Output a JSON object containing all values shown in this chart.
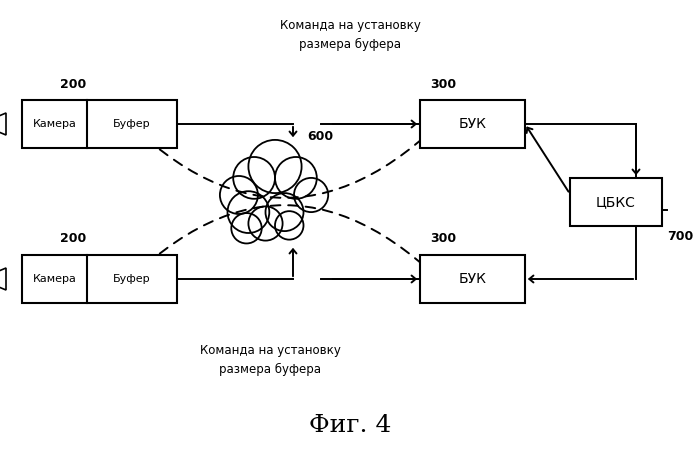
{
  "title": "Фиг. 4",
  "top_label": "Команда на установку\nразмера буфера",
  "bottom_label": "Команда на установку\nразмера буфера",
  "camera_label": "Камера",
  "buffer_label": "Буфер",
  "buk_label": "БУК",
  "cbks_label": "ЦБКС",
  "cloud_label": "600",
  "cam_top_label": "200",
  "cam_bot_label": "200",
  "buk_top_label": "300",
  "buk_bot_label": "300",
  "cbks_num_label": "700",
  "bg_color": "#ffffff",
  "box_color": "#ffffff",
  "box_edge": "#000000",
  "text_color": "#000000",
  "fig_width": 6.99,
  "fig_height": 4.55,
  "dpi": 100
}
